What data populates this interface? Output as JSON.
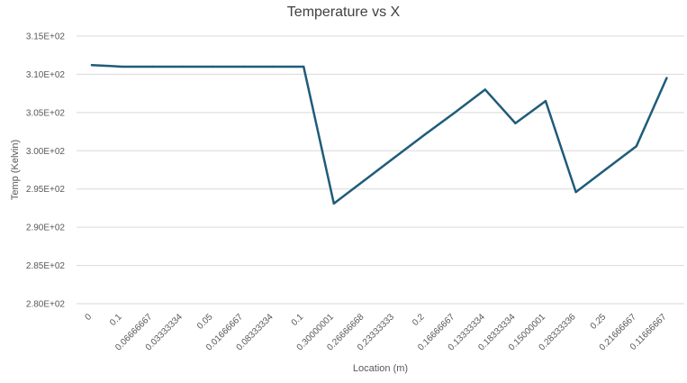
{
  "chart_data": {
    "type": "line",
    "title": "Temperature vs X",
    "xlabel": "Location (m)",
    "ylabel": "Temp  (Kelvin)",
    "ylim": [
      280,
      315
    ],
    "ytick_values": [
      280,
      285,
      290,
      295,
      300,
      305,
      310,
      315
    ],
    "ytick_labels": [
      "2.80E+02",
      "2.85E+02",
      "2.90E+02",
      "2.95E+02",
      "3.00E+02",
      "3.05E+02",
      "3.10E+02",
      "3.15E+02"
    ],
    "grid": true,
    "categories": [
      "0",
      "0.1",
      "0.06666667",
      "0.03333334",
      "0.05",
      "0.01666667",
      "0.08333334",
      "0.1",
      "0.30000001",
      "0.26666668",
      "0.23333333",
      "0.2",
      "0.16666667",
      "0.13333334",
      "0.18333334",
      "0.15000001",
      "0.28333336",
      "0.25",
      "0.21666667",
      "0.11666667"
    ],
    "series": [
      {
        "color": "#1f5c7a",
        "values": [
          311.2,
          311.0,
          311.0,
          311.0,
          311.0,
          311.0,
          311.0,
          311.0,
          293.1,
          296.1,
          299.1,
          302.1,
          305.0,
          308.0,
          303.6,
          306.5,
          294.6,
          297.6,
          300.6,
          309.5
        ]
      }
    ]
  }
}
